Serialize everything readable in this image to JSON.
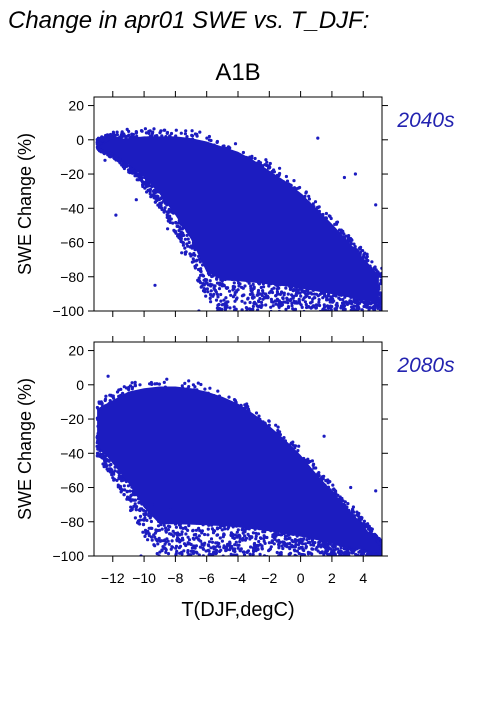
{
  "figure": {
    "title": "Change in apr01 SWE vs. T_DJF:",
    "scenario": "A1B",
    "xlabel": "T(DJF,degC)"
  },
  "colors": {
    "points": "#1c1cc0",
    "period_label": "#2323b0",
    "axis": "#000000"
  },
  "chart_data": [
    {
      "type": "scatter",
      "period": "2040s",
      "ylabel": "SWE Change (%)",
      "xlim": [
        -13.2,
        5.2
      ],
      "ylim": [
        -100,
        25
      ],
      "yticks": [
        20,
        0,
        -20,
        -40,
        -60,
        -80,
        -100
      ],
      "xticks": [
        -12,
        -10,
        -8,
        -6,
        -4,
        -2,
        0,
        2,
        4
      ],
      "envelope": {
        "x": [
          -13,
          -12,
          -11,
          -10,
          -9,
          -8,
          -7,
          -6,
          -5,
          -4,
          -3,
          -2,
          -1,
          0,
          1,
          2,
          3,
          4,
          5
        ],
        "upper": [
          0,
          4,
          5,
          6,
          6,
          6,
          5,
          3,
          0,
          -3,
          -8,
          -14,
          -20,
          -27,
          -36,
          -45,
          -55,
          -65,
          -75
        ],
        "lower": [
          -5,
          -10,
          -18,
          -28,
          -40,
          -55,
          -72,
          -95,
          -100,
          -100,
          -100,
          -100,
          -100,
          -100,
          -100,
          -100,
          -100,
          -100,
          -100
        ]
      },
      "outliers": [
        [
          -12.5,
          -12
        ],
        [
          -11.8,
          -44
        ],
        [
          -10.5,
          -35
        ],
        [
          -9.3,
          -85
        ],
        [
          -8.5,
          -52
        ],
        [
          -7.6,
          -66
        ],
        [
          1.1,
          1
        ],
        [
          2.8,
          -22
        ],
        [
          3.5,
          -20
        ],
        [
          4.8,
          -38
        ],
        [
          -6.5,
          -100
        ],
        [
          -5.3,
          -100
        ]
      ]
    },
    {
      "type": "scatter",
      "period": "2080s",
      "ylabel": "SWE Change (%)",
      "xlim": [
        -13.2,
        5.2
      ],
      "ylim": [
        -100,
        25
      ],
      "yticks": [
        20,
        0,
        -20,
        -40,
        -60,
        -80,
        -100
      ],
      "xticks": [
        -12,
        -10,
        -8,
        -6,
        -4,
        -2,
        0,
        2,
        4
      ],
      "xticklabels": [
        "−12",
        "−10",
        "−8",
        "−6",
        "−4",
        "−2",
        "0",
        "2",
        "4"
      ],
      "envelope": {
        "x": [
          -13,
          -12,
          -11,
          -10,
          -9,
          -8,
          -7,
          -6,
          -5,
          -4,
          -3,
          -2,
          -1,
          0,
          1,
          2,
          3,
          4,
          5
        ],
        "upper": [
          -10,
          -5,
          0,
          2,
          3,
          3,
          2,
          0,
          -3,
          -7,
          -13,
          -20,
          -28,
          -37,
          -48,
          -58,
          -68,
          -78,
          -90
        ],
        "lower": [
          -40,
          -55,
          -70,
          -88,
          -100,
          -100,
          -100,
          -100,
          -100,
          -100,
          -100,
          -100,
          -100,
          -100,
          -100,
          -100,
          -100,
          -100,
          -100
        ]
      },
      "outliers": [
        [
          -12.3,
          5
        ],
        [
          -13,
          -36
        ],
        [
          -11.5,
          -60
        ],
        [
          -11,
          -66
        ],
        [
          -9.3,
          -70
        ],
        [
          -8.3,
          -73
        ],
        [
          -10.2,
          -100
        ],
        [
          -7.2,
          -100
        ],
        [
          3.2,
          -60
        ],
        [
          4.8,
          -62
        ],
        [
          4.5,
          -84
        ],
        [
          1.5,
          -30
        ]
      ]
    }
  ]
}
